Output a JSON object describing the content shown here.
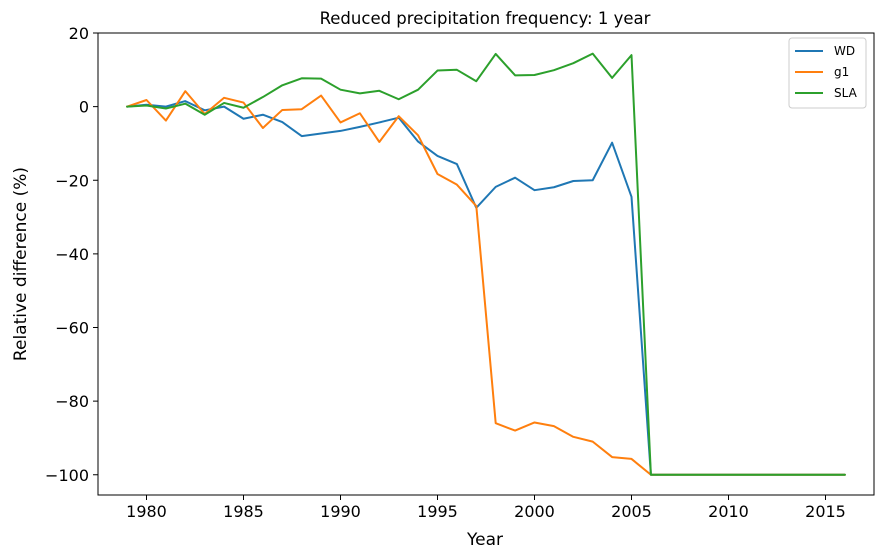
{
  "chart_data": {
    "type": "line",
    "title": "Reduced precipitation frequency: 1 year",
    "xlabel": "Year",
    "ylabel": "Relative difference (%)",
    "xlim": [
      1977.5,
      2017.5
    ],
    "ylim": [
      -105.5,
      20
    ],
    "xticks": [
      1980,
      1985,
      1990,
      1995,
      2000,
      2005,
      2010,
      2015
    ],
    "yticks": [
      20,
      0,
      -20,
      -40,
      -60,
      -80,
      -100
    ],
    "xtick_labels": [
      "1980",
      "1985",
      "1990",
      "1995",
      "2000",
      "2005",
      "2010",
      "2015"
    ],
    "ytick_labels": [
      "20",
      "0",
      "−20",
      "−40",
      "−60",
      "−80",
      "−100"
    ],
    "grid": false,
    "legend_position": "top-right",
    "x": [
      1979,
      1980,
      1981,
      1982,
      1983,
      1984,
      1985,
      1986,
      1987,
      1988,
      1989,
      1990,
      1991,
      1992,
      1993,
      1994,
      1995,
      1996,
      1997,
      1998,
      1999,
      2000,
      2001,
      2002,
      2003,
      2004,
      2005,
      2006,
      2007,
      2008,
      2009,
      2010,
      2011,
      2012,
      2013,
      2014,
      2015,
      2016
    ],
    "series": [
      {
        "name": "WD",
        "color": "#1f77b4",
        "values": [
          0,
          0.5,
          0,
          1.5,
          -1,
          0,
          -3.3,
          -2.2,
          -4.2,
          -8,
          -7.3,
          -6.6,
          -5.5,
          -4.3,
          -3,
          -9.5,
          -13.4,
          -15.6,
          -27.5,
          -21.8,
          -19.3,
          -22.7,
          -21.9,
          -20.2,
          -20,
          -9.8,
          -24.5,
          -100,
          -100,
          -100,
          -100,
          -100,
          -100,
          -100,
          -100,
          -100,
          -100,
          -100
        ]
      },
      {
        "name": "g1",
        "color": "#ff7f0e",
        "values": [
          0,
          1.8,
          -3.8,
          4.2,
          -2,
          2.4,
          1.1,
          -5.8,
          -0.9,
          -0.7,
          3,
          -4.3,
          -1.8,
          -9.6,
          -2.6,
          -7.8,
          -18.3,
          -21.2,
          -27,
          -86,
          -88,
          -85.8,
          -86.8,
          -89.7,
          -91,
          -95.2,
          -95.7,
          -100,
          -100,
          -100,
          -100,
          -100,
          -100,
          -100,
          -100,
          -100,
          -100,
          -100
        ]
      },
      {
        "name": "SLA",
        "color": "#2ca02c",
        "values": [
          0,
          0.3,
          -0.5,
          0.8,
          -2.2,
          1,
          -0.3,
          2.6,
          5.8,
          7.7,
          7.6,
          4.6,
          3.6,
          4.3,
          2,
          4.6,
          9.8,
          10,
          6.9,
          14.3,
          8.5,
          8.6,
          9.9,
          11.8,
          14.4,
          7.8,
          14,
          -100,
          -100,
          -100,
          -100,
          -100,
          -100,
          -100,
          -100,
          -100,
          -100,
          -100
        ]
      }
    ]
  }
}
